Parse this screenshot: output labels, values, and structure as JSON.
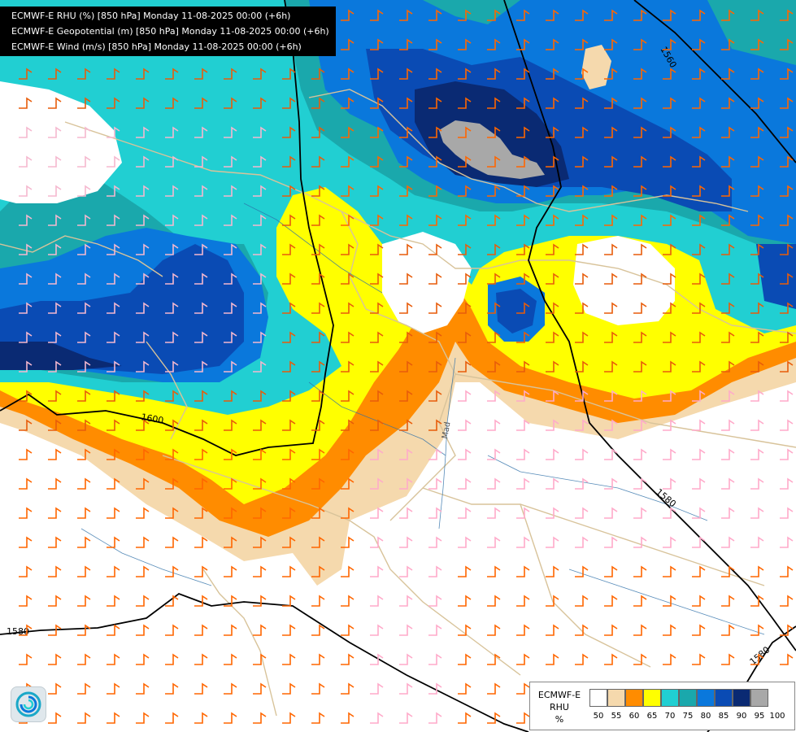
{
  "info_panel": {
    "lines": [
      "ECMWF-E RHU (%) [850 hPa] Monday 11-08-2025 00:00 (+6h)",
      "ECMWF-E Geopotential (m) [850 hPa] Monday 11-08-2025 00:00 (+6h)",
      "ECMWF-E Wind (m/s) [850 hPa] Monday 11-08-2025 00:00 (+6h)"
    ]
  },
  "legend": {
    "model": "ECMWF-E",
    "variable": "RHU",
    "unit": "%",
    "thresholds": [
      "50",
      "55",
      "60",
      "65",
      "70",
      "75",
      "80",
      "85",
      "90",
      "95",
      "100"
    ],
    "colors": [
      "#ffffff",
      "#f5d9ad",
      "#ff8c00",
      "#ffff00",
      "#21cfd2",
      "#1aa8ac",
      "#0a78dc",
      "#0a4bb4",
      "#0a2a73",
      "#a8a8a8",
      "#666666"
    ]
  },
  "contours": {
    "labels": [
      "1560",
      "1600",
      "1580",
      "1580",
      "1580"
    ]
  },
  "map_labels": {
    "river_label": "Mad"
  },
  "logo": {
    "icon": "ecmwf-swirl-icon"
  }
}
